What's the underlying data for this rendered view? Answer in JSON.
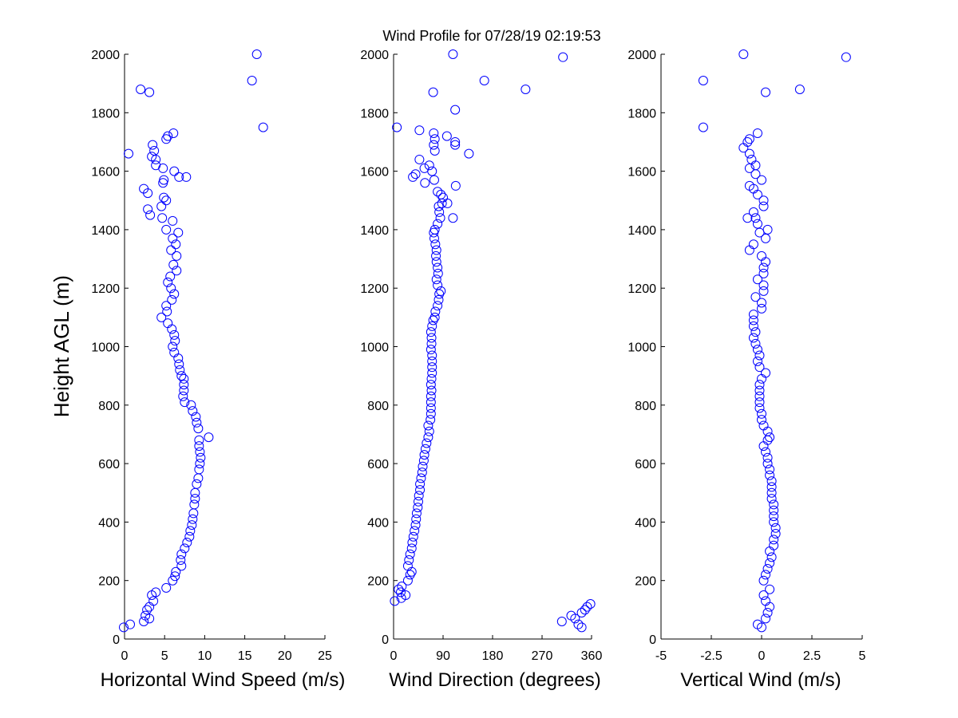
{
  "title": "Wind Profile for  07/28/19 02:19:53",
  "marker_color": "#0000ff",
  "chart_data": [
    {
      "type": "scatter",
      "xlabel": "Horizontal Wind Speed (m/s)",
      "ylabel": "Height AGL (m)",
      "xlim": [
        0,
        25
      ],
      "ylim": [
        0,
        2000
      ],
      "xticks": [
        "0",
        "5",
        "10",
        "15",
        "20",
        "25"
      ],
      "yticks": [
        "0",
        "200",
        "400",
        "600",
        "800",
        "1000",
        "1200",
        "1400",
        "1600",
        "1800",
        "2000"
      ],
      "marker": "circle-open",
      "points": [
        [
          -0.1,
          40
        ],
        [
          0.7,
          50
        ],
        [
          2.4,
          60
        ],
        [
          3.1,
          70
        ],
        [
          2.6,
          80
        ],
        [
          2.8,
          100
        ],
        [
          3.1,
          110
        ],
        [
          3.6,
          130
        ],
        [
          3.4,
          150
        ],
        [
          3.9,
          160
        ],
        [
          5.2,
          175
        ],
        [
          6.0,
          200
        ],
        [
          6.3,
          215
        ],
        [
          6.4,
          230
        ],
        [
          7.1,
          250
        ],
        [
          7.0,
          270
        ],
        [
          7.1,
          290
        ],
        [
          7.5,
          310
        ],
        [
          7.8,
          330
        ],
        [
          8.1,
          350
        ],
        [
          8.2,
          370
        ],
        [
          8.4,
          390
        ],
        [
          8.5,
          410
        ],
        [
          8.6,
          430
        ],
        [
          8.7,
          460
        ],
        [
          8.8,
          480
        ],
        [
          8.8,
          500
        ],
        [
          9.0,
          530
        ],
        [
          9.2,
          550
        ],
        [
          9.3,
          580
        ],
        [
          9.4,
          600
        ],
        [
          9.5,
          620
        ],
        [
          9.4,
          640
        ],
        [
          9.3,
          660
        ],
        [
          9.3,
          680
        ],
        [
          10.5,
          690
        ],
        [
          9.2,
          720
        ],
        [
          9.0,
          740
        ],
        [
          8.9,
          760
        ],
        [
          8.5,
          780
        ],
        [
          8.3,
          800
        ],
        [
          7.5,
          810
        ],
        [
          7.3,
          830
        ],
        [
          7.4,
          850
        ],
        [
          7.4,
          870
        ],
        [
          7.4,
          890
        ],
        [
          7.1,
          900
        ],
        [
          6.9,
          920
        ],
        [
          6.8,
          940
        ],
        [
          6.7,
          960
        ],
        [
          6.2,
          980
        ],
        [
          6.0,
          1000
        ],
        [
          6.3,
          1020
        ],
        [
          6.2,
          1040
        ],
        [
          5.9,
          1060
        ],
        [
          5.4,
          1080
        ],
        [
          4.6,
          1100
        ],
        [
          5.3,
          1120
        ],
        [
          5.2,
          1140
        ],
        [
          5.9,
          1160
        ],
        [
          6.2,
          1180
        ],
        [
          5.8,
          1200
        ],
        [
          5.4,
          1220
        ],
        [
          5.7,
          1240
        ],
        [
          6.5,
          1260
        ],
        [
          6.1,
          1280
        ],
        [
          6.5,
          1310
        ],
        [
          5.8,
          1330
        ],
        [
          6.4,
          1350
        ],
        [
          6.0,
          1370
        ],
        [
          6.7,
          1390
        ],
        [
          5.2,
          1400
        ],
        [
          6.0,
          1430
        ],
        [
          4.7,
          1440
        ],
        [
          3.2,
          1450
        ],
        [
          2.9,
          1470
        ],
        [
          4.6,
          1480
        ],
        [
          5.2,
          1500
        ],
        [
          4.9,
          1510
        ],
        [
          2.9,
          1525
        ],
        [
          2.4,
          1540
        ],
        [
          4.8,
          1560
        ],
        [
          4.9,
          1570
        ],
        [
          6.8,
          1580
        ],
        [
          7.7,
          1580
        ],
        [
          6.2,
          1600
        ],
        [
          4.8,
          1610
        ],
        [
          3.9,
          1620
        ],
        [
          3.9,
          1640
        ],
        [
          3.4,
          1650
        ],
        [
          0.5,
          1660
        ],
        [
          3.7,
          1670
        ],
        [
          3.5,
          1690
        ],
        [
          5.2,
          1710
        ],
        [
          5.4,
          1720
        ],
        [
          6.1,
          1730
        ],
        [
          17.3,
          1750
        ],
        [
          3.1,
          1870
        ],
        [
          2.0,
          1880
        ],
        [
          15.9,
          1910
        ],
        [
          16.5,
          2000
        ]
      ]
    },
    {
      "type": "scatter",
      "xlabel": "Wind Direction (degrees)",
      "xlim": [
        0,
        360
      ],
      "ylim": [
        0,
        2000
      ],
      "xticks": [
        "0",
        "90",
        "180",
        "270",
        "360"
      ],
      "yticks": [
        "0",
        "200",
        "400",
        "600",
        "800",
        "1000",
        "1200",
        "1400",
        "1600",
        "1800",
        "2000"
      ],
      "marker": "circle-open",
      "points": [
        [
          342,
          40
        ],
        [
          336,
          50
        ],
        [
          306,
          60
        ],
        [
          330,
          70
        ],
        [
          323,
          80
        ],
        [
          342,
          90
        ],
        [
          348,
          100
        ],
        [
          352,
          110
        ],
        [
          358,
          120
        ],
        [
          2,
          130
        ],
        [
          14,
          140
        ],
        [
          22,
          150
        ],
        [
          13,
          160
        ],
        [
          9,
          170
        ],
        [
          15,
          180
        ],
        [
          26,
          200
        ],
        [
          30,
          220
        ],
        [
          33,
          230
        ],
        [
          26,
          250
        ],
        [
          28,
          270
        ],
        [
          30,
          290
        ],
        [
          33,
          310
        ],
        [
          34,
          330
        ],
        [
          36,
          350
        ],
        [
          38,
          370
        ],
        [
          40,
          390
        ],
        [
          41,
          410
        ],
        [
          42,
          430
        ],
        [
          44,
          450
        ],
        [
          45,
          470
        ],
        [
          46,
          490
        ],
        [
          48,
          510
        ],
        [
          48,
          530
        ],
        [
          50,
          550
        ],
        [
          52,
          570
        ],
        [
          53,
          590
        ],
        [
          55,
          610
        ],
        [
          56,
          630
        ],
        [
          58,
          650
        ],
        [
          60,
          670
        ],
        [
          63,
          690
        ],
        [
          65,
          710
        ],
        [
          63,
          730
        ],
        [
          67,
          750
        ],
        [
          68,
          770
        ],
        [
          68,
          790
        ],
        [
          68,
          810
        ],
        [
          68,
          830
        ],
        [
          69,
          850
        ],
        [
          68,
          870
        ],
        [
          69,
          890
        ],
        [
          70,
          910
        ],
        [
          70,
          930
        ],
        [
          70,
          950
        ],
        [
          70,
          970
        ],
        [
          68,
          990
        ],
        [
          69,
          1010
        ],
        [
          69,
          1030
        ],
        [
          68,
          1050
        ],
        [
          70,
          1070
        ],
        [
          72,
          1090
        ],
        [
          75,
          1100
        ],
        [
          76,
          1120
        ],
        [
          80,
          1140
        ],
        [
          82,
          1160
        ],
        [
          83,
          1180
        ],
        [
          86,
          1190
        ],
        [
          80,
          1210
        ],
        [
          78,
          1230
        ],
        [
          81,
          1250
        ],
        [
          80,
          1270
        ],
        [
          78,
          1290
        ],
        [
          77,
          1310
        ],
        [
          78,
          1330
        ],
        [
          76,
          1350
        ],
        [
          74,
          1370
        ],
        [
          73,
          1390
        ],
        [
          75,
          1400
        ],
        [
          80,
          1420
        ],
        [
          85,
          1440
        ],
        [
          83,
          1460
        ],
        [
          82,
          1480
        ],
        [
          88,
          1490
        ],
        [
          90,
          1510
        ],
        [
          86,
          1520
        ],
        [
          80,
          1530
        ],
        [
          108,
          1440
        ],
        [
          98,
          1490
        ],
        [
          113,
          1550
        ],
        [
          57,
          1560
        ],
        [
          74,
          1570
        ],
        [
          35,
          1580
        ],
        [
          40,
          1590
        ],
        [
          70,
          1600
        ],
        [
          56,
          1610
        ],
        [
          65,
          1620
        ],
        [
          47,
          1640
        ],
        [
          137,
          1660
        ],
        [
          75,
          1670
        ],
        [
          73,
          1690
        ],
        [
          112,
          1690
        ],
        [
          112,
          1700
        ],
        [
          75,
          1710
        ],
        [
          97,
          1720
        ],
        [
          73,
          1730
        ],
        [
          47,
          1740
        ],
        [
          6,
          1750
        ],
        [
          112,
          1810
        ],
        [
          72,
          1870
        ],
        [
          240,
          1880
        ],
        [
          165,
          1910
        ],
        [
          308,
          1990
        ],
        [
          108,
          2000
        ]
      ]
    },
    {
      "type": "scatter",
      "xlabel": "Vertical Wind (m/s)",
      "xlim": [
        -5,
        5
      ],
      "ylim": [
        0,
        2000
      ],
      "xticks": [
        "-5",
        "-2.5",
        "0",
        "2.5",
        "5"
      ],
      "yticks": [
        "0",
        "200",
        "400",
        "600",
        "800",
        "1000",
        "1200",
        "1400",
        "1600",
        "1800",
        "2000"
      ],
      "marker": "circle-open",
      "points": [
        [
          0.0,
          40
        ],
        [
          -0.2,
          50
        ],
        [
          0.2,
          70
        ],
        [
          0.3,
          90
        ],
        [
          0.4,
          110
        ],
        [
          0.2,
          130
        ],
        [
          0.1,
          150
        ],
        [
          0.4,
          170
        ],
        [
          0.1,
          200
        ],
        [
          0.2,
          220
        ],
        [
          0.3,
          240
        ],
        [
          0.4,
          260
        ],
        [
          0.5,
          280
        ],
        [
          0.4,
          300
        ],
        [
          0.6,
          320
        ],
        [
          0.6,
          340
        ],
        [
          0.7,
          360
        ],
        [
          0.7,
          380
        ],
        [
          0.6,
          400
        ],
        [
          0.6,
          420
        ],
        [
          0.6,
          440
        ],
        [
          0.6,
          460
        ],
        [
          0.5,
          480
        ],
        [
          0.5,
          500
        ],
        [
          0.5,
          520
        ],
        [
          0.5,
          540
        ],
        [
          0.4,
          560
        ],
        [
          0.4,
          580
        ],
        [
          0.3,
          600
        ],
        [
          0.3,
          620
        ],
        [
          0.2,
          640
        ],
        [
          0.1,
          660
        ],
        [
          0.3,
          680
        ],
        [
          0.4,
          690
        ],
        [
          0.3,
          710
        ],
        [
          0.1,
          730
        ],
        [
          0.0,
          750
        ],
        [
          0.0,
          770
        ],
        [
          -0.1,
          790
        ],
        [
          -0.1,
          810
        ],
        [
          -0.1,
          830
        ],
        [
          -0.1,
          850
        ],
        [
          -0.1,
          870
        ],
        [
          0.0,
          890
        ],
        [
          0.2,
          910
        ],
        [
          -0.1,
          930
        ],
        [
          -0.2,
          950
        ],
        [
          -0.1,
          970
        ],
        [
          -0.2,
          990
        ],
        [
          -0.3,
          1010
        ],
        [
          -0.4,
          1030
        ],
        [
          -0.3,
          1050
        ],
        [
          -0.4,
          1070
        ],
        [
          -0.4,
          1090
        ],
        [
          -0.4,
          1110
        ],
        [
          0.0,
          1130
        ],
        [
          0.0,
          1150
        ],
        [
          -0.3,
          1170
        ],
        [
          0.1,
          1190
        ],
        [
          0.1,
          1210
        ],
        [
          -0.2,
          1230
        ],
        [
          0.1,
          1250
        ],
        [
          0.1,
          1270
        ],
        [
          0.2,
          1290
        ],
        [
          0.0,
          1310
        ],
        [
          -0.6,
          1330
        ],
        [
          -0.4,
          1350
        ],
        [
          0.2,
          1370
        ],
        [
          -0.1,
          1390
        ],
        [
          0.3,
          1400
        ],
        [
          -0.2,
          1420
        ],
        [
          -0.3,
          1440
        ],
        [
          -0.7,
          1440
        ],
        [
          -0.4,
          1460
        ],
        [
          0.1,
          1480
        ],
        [
          0.1,
          1500
        ],
        [
          -0.2,
          1520
        ],
        [
          -0.4,
          1540
        ],
        [
          -0.6,
          1550
        ],
        [
          0.0,
          1570
        ],
        [
          -0.3,
          1590
        ],
        [
          -0.6,
          1610
        ],
        [
          -0.3,
          1620
        ],
        [
          -0.5,
          1640
        ],
        [
          -0.6,
          1660
        ],
        [
          -0.9,
          1680
        ],
        [
          -0.7,
          1700
        ],
        [
          -0.6,
          1710
        ],
        [
          -0.2,
          1730
        ],
        [
          -2.9,
          1750
        ],
        [
          0.2,
          1870
        ],
        [
          1.9,
          1880
        ],
        [
          -2.9,
          1910
        ],
        [
          4.2,
          1990
        ],
        [
          -0.9,
          2000
        ]
      ]
    }
  ]
}
